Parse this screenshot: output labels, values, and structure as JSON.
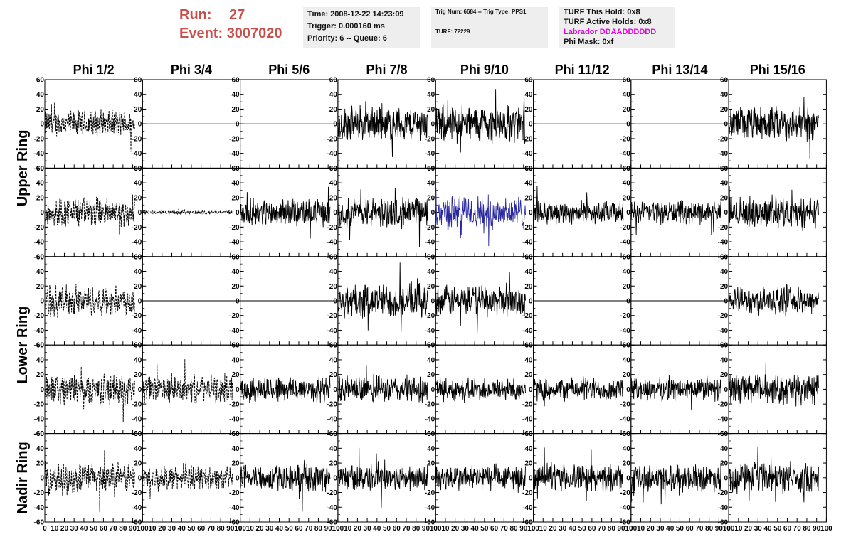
{
  "header": {
    "run_label": "Run:",
    "run_value": "27",
    "event_label": "Event:",
    "event_value": "3007020",
    "time": "Time: 2008-12-22 14:23:09",
    "trigger": "Trigger: 0.000160 ms",
    "priority": "Priority: 6 -- Queue: 6",
    "trig_num": "Trig Num: 6684 -- Trig Type: PPS1",
    "turf": "TURF: 72229",
    "turf_hold": "TURF This Hold: 0x8",
    "turf_active": "TURF Active Holds: 0x8",
    "labrador": "Labrador DDAADDDDDD",
    "phi_mask": "Phi Mask: 0xf"
  },
  "colors": {
    "header_red": "#c8504b",
    "labrador": "#e600e6",
    "highlight_trace": "#2a2aa0",
    "trace": "#000000",
    "info_bg": "#eeeeee"
  },
  "chart_data": {
    "type": "line",
    "columns": [
      "Phi 1/2",
      "Phi 3/4",
      "Phi 5/6",
      "Phi 7/8",
      "Phi 9/10",
      "Phi 11/12",
      "Phi 13/14",
      "Phi 15/16"
    ],
    "ring_labels": [
      {
        "text": "Upper Ring",
        "rows": [
          0,
          1
        ]
      },
      {
        "text": "Lower Ring",
        "rows": [
          2,
          3
        ]
      },
      {
        "text": "Nadir Ring",
        "rows": [
          4,
          4
        ]
      }
    ],
    "xlim": [
      0,
      100
    ],
    "ylim": [
      -60,
      60
    ],
    "x_ticks": [
      "0",
      "10",
      "20",
      "30",
      "40",
      "50",
      "60",
      "70",
      "80",
      "90",
      "100"
    ],
    "y_ticks": [
      "60",
      "40",
      "20",
      "0",
      "-20",
      "-40",
      "-60"
    ],
    "panel_amplitude": [
      [
        14,
        0,
        0,
        18,
        20,
        0,
        0,
        18
      ],
      [
        16,
        2,
        14,
        16,
        18,
        12,
        12,
        16
      ],
      [
        16,
        0,
        0,
        18,
        16,
        0,
        0,
        14
      ],
      [
        16,
        14,
        14,
        14,
        12,
        12,
        12,
        16
      ],
      [
        16,
        12,
        14,
        14,
        14,
        14,
        14,
        16
      ]
    ],
    "panel_style": [
      [
        "dashed",
        "flat",
        "flat",
        "solid",
        "solid",
        "flat",
        "flat",
        "solid"
      ],
      [
        "dashed",
        "dashed",
        "solid",
        "solid",
        "highlight",
        "solid",
        "solid",
        "solid"
      ],
      [
        "dashed",
        "flat",
        "flat",
        "solid",
        "solid",
        "flat",
        "flat",
        "solid"
      ],
      [
        "dashed",
        "dashed",
        "solid",
        "solid",
        "solid",
        "solid",
        "solid",
        "solid"
      ],
      [
        "dashed",
        "dashed",
        "solid",
        "solid",
        "solid",
        "solid",
        "solid",
        "solid"
      ]
    ],
    "samples": 260
  }
}
